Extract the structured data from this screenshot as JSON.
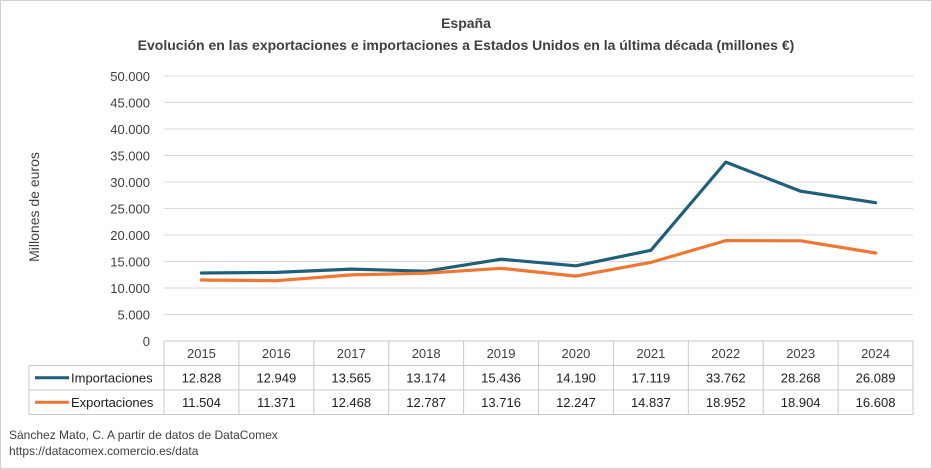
{
  "chart_data": {
    "type": "line",
    "title": "España",
    "subtitle": "Evolución en las exportaciones e importaciones a Estados Unidos en la última década (millones €)",
    "ylabel": "Millones de euros",
    "xlabel": "",
    "ylim": [
      0,
      50000
    ],
    "y_ticks": [
      "0",
      "5.000",
      "10.000",
      "15.000",
      "20.000",
      "25.000",
      "30.000",
      "35.000",
      "40.000",
      "45.000",
      "50.000"
    ],
    "categories": [
      "2015",
      "2016",
      "2017",
      "2018",
      "2019",
      "2020",
      "2021",
      "2022",
      "2023",
      "2024"
    ],
    "grid": true,
    "legend": "data-table",
    "series": [
      {
        "name": "Importaciones",
        "color": "#1f5f7a",
        "values": [
          12828,
          12949,
          13565,
          13174,
          15436,
          14190,
          17119,
          33762,
          28268,
          26089
        ],
        "labels": [
          "12.828",
          "12.949",
          "13.565",
          "13.174",
          "15.436",
          "14.190",
          "17.119",
          "33.762",
          "28.268",
          "26.089"
        ]
      },
      {
        "name": "Exportaciones",
        "color": "#ee7733",
        "values": [
          11504,
          11371,
          12468,
          12787,
          13716,
          12247,
          14837,
          18952,
          18904,
          16608
        ],
        "labels": [
          "11.504",
          "11.371",
          "12.468",
          "12.787",
          "13.716",
          "12.247",
          "14.837",
          "18.952",
          "18.904",
          "16.608"
        ]
      }
    ]
  },
  "source": {
    "line1": "Sánchez Mato, C.  A partir de datos de DataComex",
    "line2": "https://datacomex.comercio.es/data"
  }
}
